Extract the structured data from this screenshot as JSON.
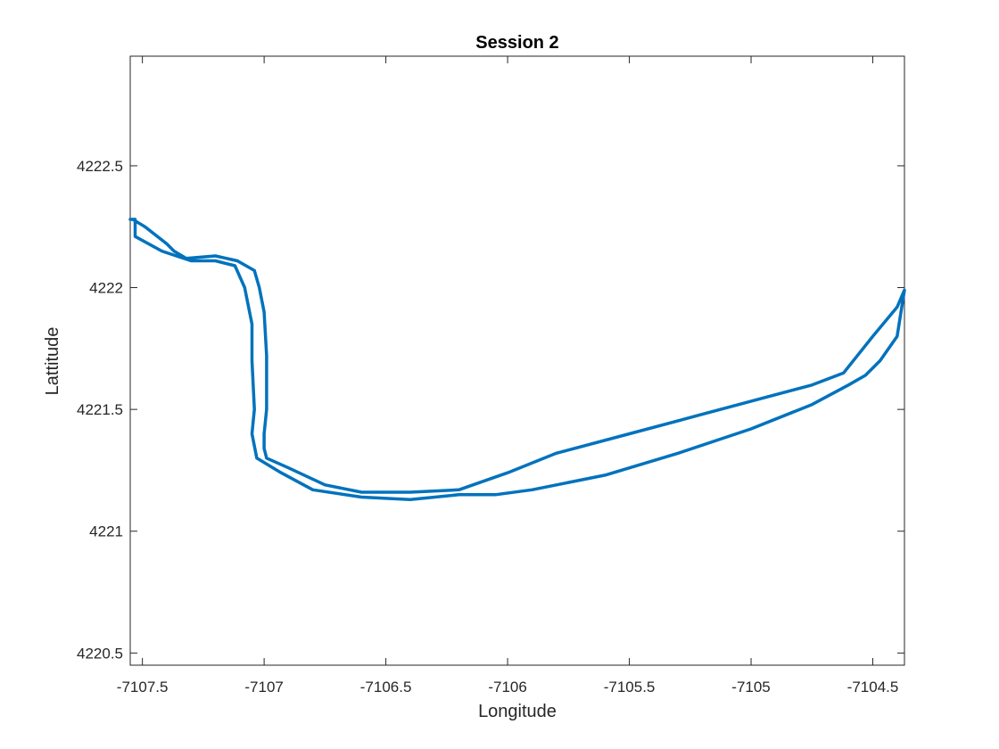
{
  "chart_data": {
    "type": "line",
    "title": "Session 2",
    "xlabel": "Longitude",
    "ylabel": "Lattitude",
    "xlim": [
      -7107.55,
      -7104.37
    ],
    "ylim": [
      4220.45,
      4222.95
    ],
    "xticks": [
      -7107.5,
      -7107,
      -7106.5,
      -7106,
      -7105.5,
      -7105,
      -7104.5
    ],
    "xtick_labels": [
      "-7107.5",
      "-7107",
      "-7106.5",
      "-7106",
      "-7105.5",
      "-7105",
      "-7104.5"
    ],
    "yticks": [
      4220.5,
      4221,
      4221.5,
      4222,
      4222.5
    ],
    "ytick_labels": [
      "4220.5",
      "4221",
      "4221.5",
      "4222",
      "4222.5"
    ],
    "grid": false,
    "box": true,
    "series": [
      {
        "color": "#0072BD",
        "x": [
          -7107.54,
          -7107.49,
          -7107.4,
          -7107.37,
          -7107.32,
          -7107.2,
          -7107.11,
          -7107.04,
          -7107.02,
          -7107.0,
          -7106.99,
          -7106.99,
          -7107.0,
          -7107.0,
          -7106.99,
          -7106.9,
          -7106.75,
          -7106.6,
          -7106.4,
          -7106.2,
          -7106.0,
          -7105.8,
          -7105.5,
          -7105.2,
          -7104.9,
          -7104.75,
          -7104.62,
          -7104.5,
          -7104.4,
          -7104.37,
          -7104.4,
          -7104.47,
          -7104.53,
          -7104.6,
          -7104.75,
          -7105.0,
          -7105.3,
          -7105.6,
          -7105.9,
          -7106.05,
          -7106.2,
          -7106.4,
          -7106.6,
          -7106.8,
          -7106.93,
          -7107.03,
          -7107.05,
          -7107.04,
          -7107.05,
          -7107.05,
          -7107.08,
          -7107.12,
          -7107.2,
          -7107.3,
          -7107.42,
          -7107.53,
          -7107.53,
          -7107.55
        ],
        "y": [
          4222.28,
          4222.25,
          4222.18,
          4222.15,
          4222.12,
          4222.13,
          4222.11,
          4222.07,
          4222.0,
          4221.9,
          4221.72,
          4221.5,
          4221.4,
          4221.34,
          4221.3,
          4221.26,
          4221.19,
          4221.16,
          4221.16,
          4221.17,
          4221.24,
          4221.32,
          4221.4,
          4221.48,
          4221.56,
          4221.6,
          4221.65,
          4221.8,
          4221.92,
          4221.99,
          4221.8,
          4221.7,
          4221.64,
          4221.6,
          4221.52,
          4221.42,
          4221.32,
          4221.23,
          4221.17,
          4221.15,
          4221.15,
          4221.13,
          4221.14,
          4221.17,
          4221.24,
          4221.3,
          4221.4,
          4221.5,
          4221.7,
          4221.85,
          4222.0,
          4222.09,
          4222.11,
          4222.11,
          4222.15,
          4222.21,
          4222.28,
          4222.28
        ]
      }
    ]
  }
}
